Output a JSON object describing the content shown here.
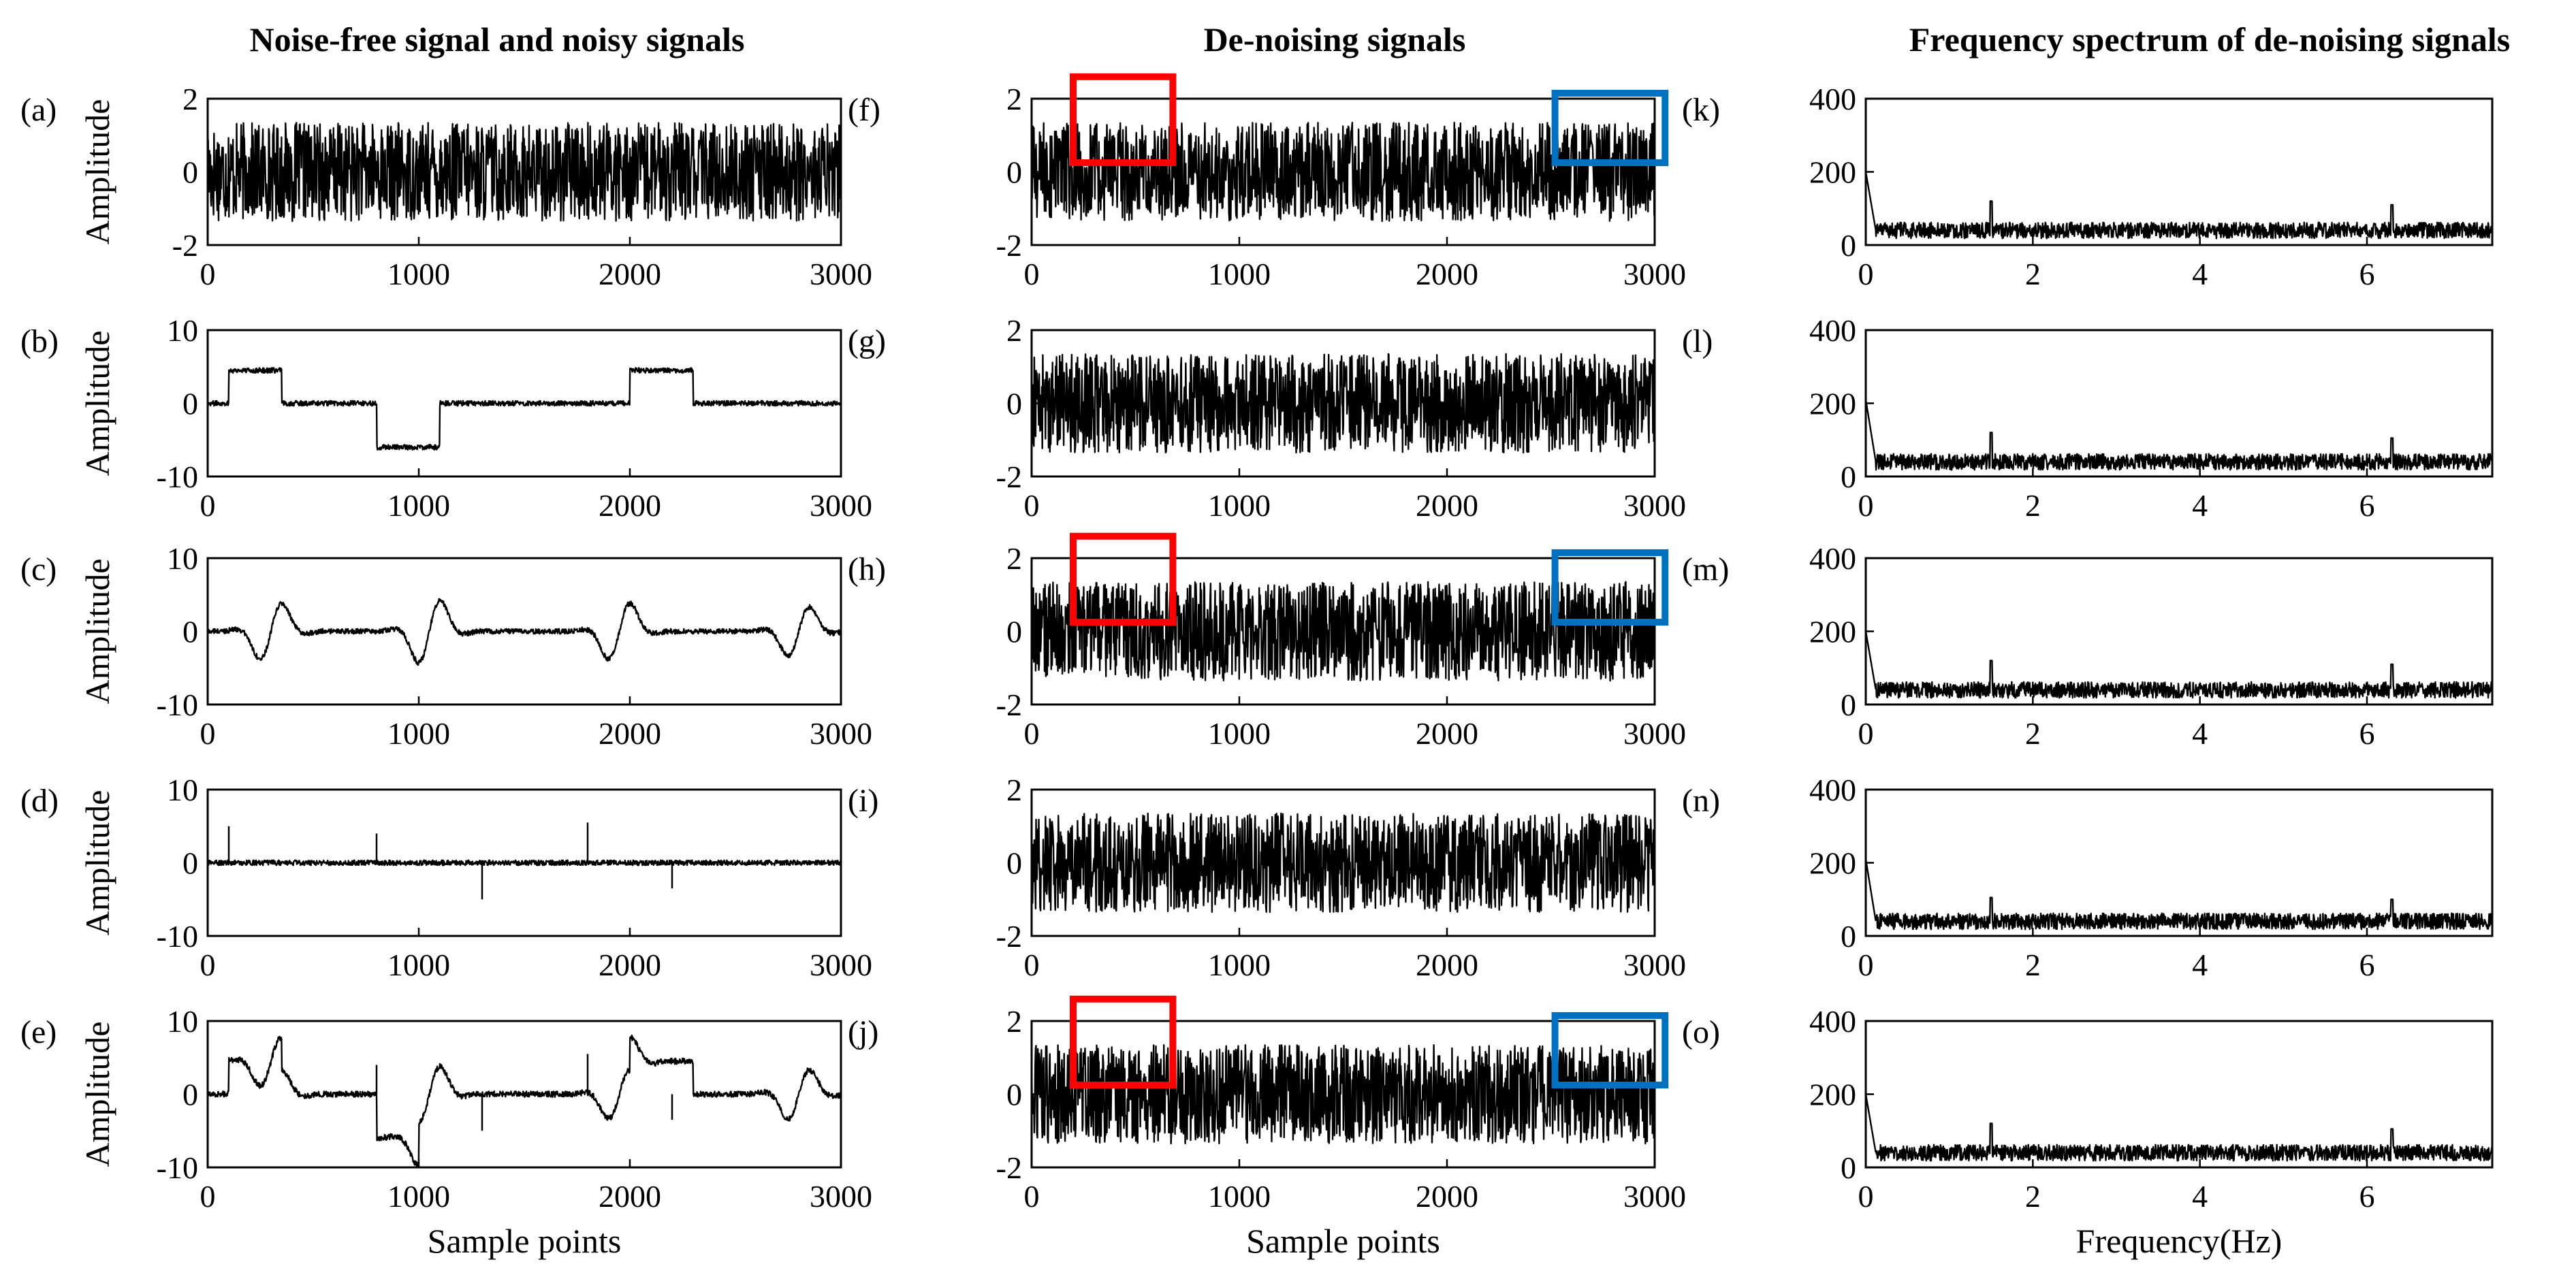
{
  "figure": {
    "column_titles": [
      "Noise-free signal and noisy signals",
      "De-noising signals",
      "Frequency spectrum of de-noising signals"
    ]
  },
  "colors": {
    "red_box": "#ff0000",
    "blue_box": "#0070c0",
    "trace": "#000000"
  },
  "chart_data": [
    {
      "id": "a",
      "label": "(a)",
      "type": "line",
      "xlim": [
        0,
        3000
      ],
      "ylim": [
        -2,
        2
      ],
      "xticks": [
        0,
        1000,
        2000,
        3000
      ],
      "yticks": [
        -2,
        0,
        2
      ],
      "ylabel": "Amplitude",
      "xlabel": "",
      "signal": {
        "kind": "noise",
        "amplitude": 1.35,
        "noise": 0,
        "steps": [],
        "spikes": [],
        "wavelets": []
      }
    },
    {
      "id": "b",
      "label": "(b)",
      "type": "line",
      "xlim": [
        0,
        3000
      ],
      "ylim": [
        -10,
        10
      ],
      "xticks": [
        0,
        1000,
        2000,
        3000
      ],
      "yticks": [
        -10,
        0,
        10
      ],
      "ylabel": "Amplitude",
      "xlabel": "",
      "signal": {
        "kind": "composite",
        "amplitude": 0,
        "noise": 0.35,
        "steps": [
          {
            "x0": 100,
            "x1": 350,
            "level": 4.5
          },
          {
            "x0": 800,
            "x1": 1100,
            "level": -6
          },
          {
            "x0": 2000,
            "x1": 2300,
            "level": 4.5
          }
        ],
        "spikes": [],
        "wavelets": []
      }
    },
    {
      "id": "c",
      "label": "(c)",
      "type": "line",
      "xlim": [
        0,
        3000
      ],
      "ylim": [
        -10,
        10
      ],
      "xticks": [
        0,
        1000,
        2000,
        3000
      ],
      "yticks": [
        -10,
        0,
        10
      ],
      "ylabel": "Amplitude",
      "xlabel": "",
      "signal": {
        "kind": "composite",
        "amplitude": 0,
        "noise": 0.35,
        "steps": [],
        "spikes": [],
        "wavelets": [
          {
            "x": 300,
            "amp": 4
          },
          {
            "x": 1050,
            "amp": 4.5
          },
          {
            "x": 1950,
            "amp": 4
          },
          {
            "x": 2800,
            "amp": 3.5
          }
        ]
      }
    },
    {
      "id": "d",
      "label": "(d)",
      "type": "line",
      "xlim": [
        0,
        3000
      ],
      "ylim": [
        -10,
        10
      ],
      "xticks": [
        0,
        1000,
        2000,
        3000
      ],
      "yticks": [
        -10,
        0,
        10
      ],
      "ylabel": "Amplitude",
      "xlabel": "",
      "signal": {
        "kind": "composite",
        "amplitude": 0,
        "noise": 0.35,
        "steps": [],
        "wavelets": [],
        "spikes": [
          {
            "x": 100,
            "v": 5
          },
          {
            "x": 800,
            "v": 4
          },
          {
            "x": 1300,
            "v": -5
          },
          {
            "x": 1800,
            "v": 5.5
          },
          {
            "x": 2200,
            "v": -3.5
          }
        ]
      }
    },
    {
      "id": "e",
      "label": "(e)",
      "type": "line",
      "xlim": [
        0,
        3000
      ],
      "ylim": [
        -10,
        10
      ],
      "xticks": [
        0,
        1000,
        2000,
        3000
      ],
      "yticks": [
        -10,
        0,
        10
      ],
      "ylabel": "Amplitude",
      "xlabel": "Sample points",
      "signal": {
        "kind": "composite",
        "amplitude": 0,
        "noise": 0.4,
        "steps": [
          {
            "x0": 100,
            "x1": 350,
            "level": 4.5
          },
          {
            "x0": 800,
            "x1": 1000,
            "level": -6
          },
          {
            "x0": 2000,
            "x1": 2300,
            "level": 4.5
          }
        ],
        "spikes": [
          {
            "x": 800,
            "v": 4
          },
          {
            "x": 1300,
            "v": -5
          },
          {
            "x": 1800,
            "v": 5.5
          },
          {
            "x": 2200,
            "v": -3.5
          }
        ],
        "wavelets": [
          {
            "x": 300,
            "amp": 3.5
          },
          {
            "x": 1050,
            "amp": 4
          },
          {
            "x": 1950,
            "amp": 3.5
          },
          {
            "x": 2800,
            "amp": 3.5
          }
        ]
      }
    },
    {
      "id": "f",
      "label": "(f)",
      "type": "line",
      "xlim": [
        0,
        3000
      ],
      "ylim": [
        -2,
        2
      ],
      "xticks": [
        0,
        1000,
        2000,
        3000
      ],
      "yticks": [
        -2,
        0,
        2
      ],
      "ylabel": "",
      "xlabel": "",
      "signal": {
        "kind": "noise",
        "amplitude": 1.35,
        "noise": 0,
        "steps": [],
        "spikes": [],
        "wavelets": []
      },
      "boxes": [
        {
          "x0": 200,
          "x1": 680,
          "y0": 0.25,
          "y1": 2.6,
          "color": "red"
        },
        {
          "x0": 2520,
          "x1": 3050,
          "y0": 0.25,
          "y1": 2.15,
          "color": "blue"
        }
      ]
    },
    {
      "id": "g",
      "label": "(g)",
      "type": "line",
      "xlim": [
        0,
        3000
      ],
      "ylim": [
        -2,
        2
      ],
      "xticks": [
        0,
        1000,
        2000,
        3000
      ],
      "yticks": [
        -2,
        0,
        2
      ],
      "ylabel": "",
      "xlabel": "",
      "signal": {
        "kind": "noise",
        "amplitude": 1.35,
        "noise": 0,
        "steps": [],
        "spikes": [],
        "wavelets": []
      },
      "boxes": []
    },
    {
      "id": "h",
      "label": "(h)",
      "type": "line",
      "xlim": [
        0,
        3000
      ],
      "ylim": [
        -2,
        2
      ],
      "xticks": [
        0,
        1000,
        2000,
        3000
      ],
      "yticks": [
        -2,
        0,
        2
      ],
      "ylabel": "",
      "xlabel": "",
      "signal": {
        "kind": "noise",
        "amplitude": 1.35,
        "noise": 0,
        "steps": [],
        "spikes": [],
        "wavelets": []
      },
      "boxes": [
        {
          "x0": 200,
          "x1": 680,
          "y0": 0.25,
          "y1": 2.6,
          "color": "red"
        },
        {
          "x0": 2520,
          "x1": 3050,
          "y0": 0.25,
          "y1": 2.15,
          "color": "blue"
        }
      ]
    },
    {
      "id": "i",
      "label": "(i)",
      "type": "line",
      "xlim": [
        0,
        3000
      ],
      "ylim": [
        -2,
        2
      ],
      "xticks": [
        0,
        1000,
        2000,
        3000
      ],
      "yticks": [
        -2,
        0,
        2
      ],
      "ylabel": "",
      "xlabel": "",
      "signal": {
        "kind": "noise",
        "amplitude": 1.35,
        "noise": 0,
        "steps": [],
        "spikes": [],
        "wavelets": []
      },
      "boxes": []
    },
    {
      "id": "j",
      "label": "(j)",
      "type": "line",
      "xlim": [
        0,
        3000
      ],
      "ylim": [
        -2,
        2
      ],
      "xticks": [
        0,
        1000,
        2000,
        3000
      ],
      "yticks": [
        -2,
        0,
        2
      ],
      "ylabel": "",
      "xlabel": "Sample points",
      "signal": {
        "kind": "noise",
        "amplitude": 1.35,
        "noise": 0,
        "steps": [],
        "spikes": [],
        "wavelets": []
      },
      "boxes": [
        {
          "x0": 200,
          "x1": 680,
          "y0": 0.25,
          "y1": 2.6,
          "color": "red"
        },
        {
          "x0": 2520,
          "x1": 3050,
          "y0": 0.25,
          "y1": 2.15,
          "color": "blue"
        }
      ]
    },
    {
      "id": "k",
      "label": "(k)",
      "type": "line",
      "xlim": [
        0,
        7.5
      ],
      "ylim": [
        0,
        400
      ],
      "xticks": [
        0,
        2,
        4,
        6
      ],
      "yticks": [
        0,
        200,
        400
      ],
      "ylabel": "",
      "xlabel": "",
      "signal": {
        "kind": "spectrum",
        "base": 40,
        "noise": 22,
        "peak": 200,
        "features": [
          {
            "x": 1.5,
            "v": 120
          },
          {
            "x": 6.3,
            "v": 110
          }
        ]
      }
    },
    {
      "id": "l",
      "label": "(l)",
      "type": "line",
      "xlim": [
        0,
        7.5
      ],
      "ylim": [
        0,
        400
      ],
      "xticks": [
        0,
        2,
        4,
        6
      ],
      "yticks": [
        0,
        200,
        400
      ],
      "ylabel": "",
      "xlabel": "",
      "signal": {
        "kind": "spectrum",
        "base": 40,
        "noise": 22,
        "peak": 210,
        "features": [
          {
            "x": 1.5,
            "v": 120
          },
          {
            "x": 6.3,
            "v": 105
          }
        ]
      }
    },
    {
      "id": "m",
      "label": "(m)",
      "type": "line",
      "xlim": [
        0,
        7.5
      ],
      "ylim": [
        0,
        400
      ],
      "xticks": [
        0,
        2,
        4,
        6
      ],
      "yticks": [
        0,
        200,
        400
      ],
      "ylabel": "",
      "xlabel": "",
      "signal": {
        "kind": "spectrum",
        "base": 40,
        "noise": 22,
        "peak": 200,
        "features": [
          {
            "x": 1.5,
            "v": 120
          },
          {
            "x": 6.3,
            "v": 110
          }
        ]
      }
    },
    {
      "id": "n",
      "label": "(n)",
      "type": "line",
      "xlim": [
        0,
        7.5
      ],
      "ylim": [
        0,
        400
      ],
      "xticks": [
        0,
        2,
        4,
        6
      ],
      "yticks": [
        0,
        200,
        400
      ],
      "ylabel": "",
      "xlabel": "",
      "signal": {
        "kind": "spectrum",
        "base": 40,
        "noise": 22,
        "peak": 210,
        "features": [
          {
            "x": 1.5,
            "v": 105
          },
          {
            "x": 6.3,
            "v": 100
          }
        ]
      }
    },
    {
      "id": "o",
      "label": "(o)",
      "type": "line",
      "xlim": [
        0,
        7.5
      ],
      "ylim": [
        0,
        400
      ],
      "xticks": [
        0,
        2,
        4,
        6
      ],
      "yticks": [
        0,
        200,
        400
      ],
      "ylabel": "",
      "xlabel": "Frequency(Hz)",
      "signal": {
        "kind": "spectrum",
        "base": 40,
        "noise": 22,
        "peak": 200,
        "features": [
          {
            "x": 1.5,
            "v": 120
          },
          {
            "x": 6.3,
            "v": 105
          }
        ]
      }
    }
  ]
}
